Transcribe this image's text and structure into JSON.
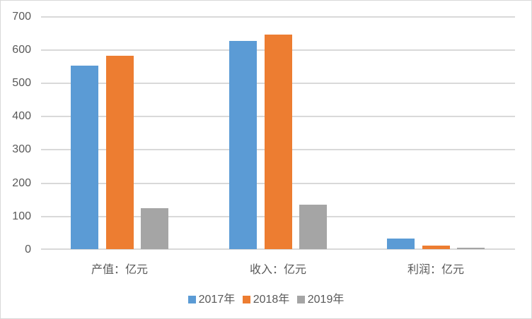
{
  "chart_data": {
    "type": "bar",
    "title": "",
    "xlabel": "",
    "ylabel": "",
    "ylim": [
      0,
      700
    ],
    "yticks": [
      0,
      100,
      200,
      300,
      400,
      500,
      600,
      700
    ],
    "grid": true,
    "legend_position": "bottom",
    "categories": [
      "产值：亿元",
      "收入：亿元",
      "利润：亿元"
    ],
    "series": [
      {
        "name": "2017年",
        "color": "#5b9bd5",
        "values": [
          551,
          625,
          31
        ]
      },
      {
        "name": "2018年",
        "color": "#ed7d31",
        "values": [
          582,
          644,
          10
        ]
      },
      {
        "name": "2019年",
        "color": "#a5a5a5",
        "values": [
          124,
          133,
          5
        ]
      }
    ]
  },
  "axis": {
    "yticks": [
      "0",
      "100",
      "200",
      "300",
      "400",
      "500",
      "600",
      "700"
    ]
  },
  "legend": {
    "items": [
      "2017年",
      "2018年",
      "2019年"
    ]
  }
}
